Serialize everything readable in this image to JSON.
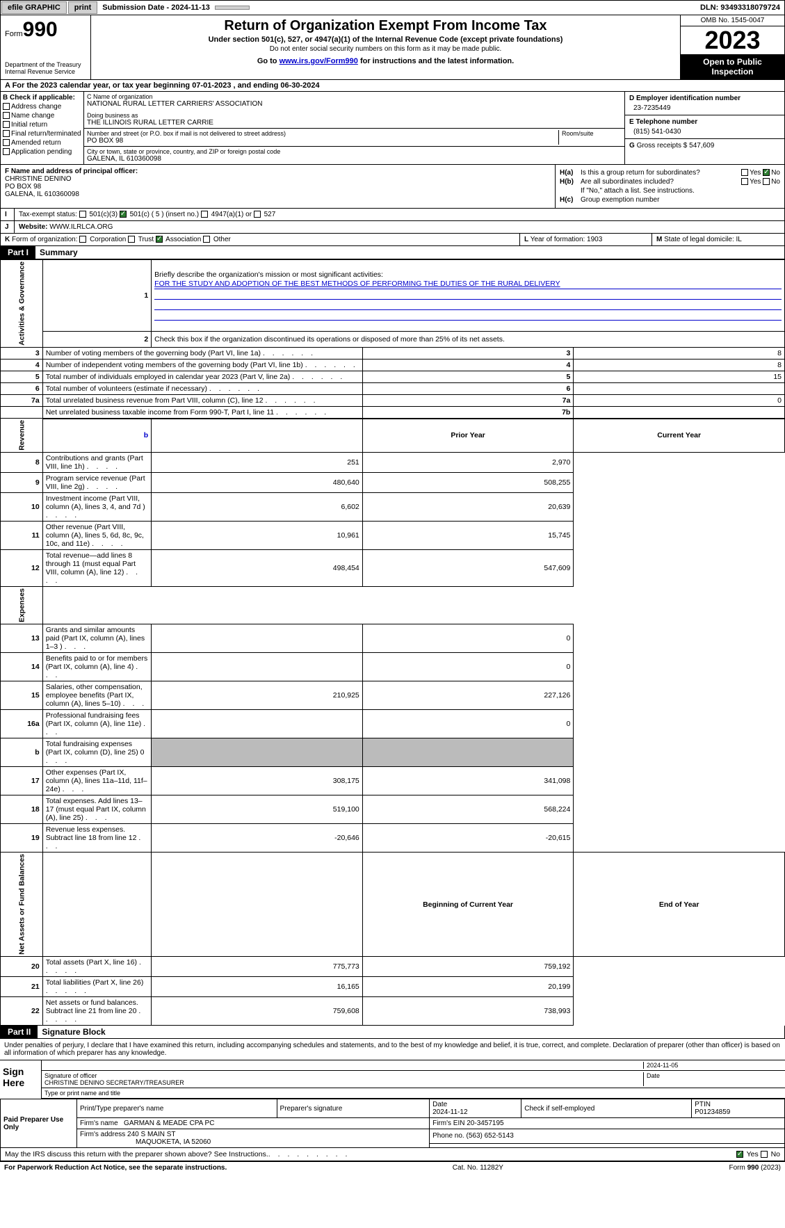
{
  "topbar": {
    "efile": "efile GRAPHIC",
    "print": "print",
    "submission": "Submission Date - 2024-11-13",
    "dln": "DLN: 93493318079724"
  },
  "header": {
    "form": "Form",
    "form_no": "990",
    "dept": "Department of the Treasury\nInternal Revenue Service",
    "title": "Return of Organization Exempt From Income Tax",
    "subtitle": "Under section 501(c), 527, or 4947(a)(1) of the Internal Revenue Code (except private foundations)",
    "ssn_note": "Do not enter social security numbers on this form as it may be made public.",
    "goto_prefix": "Go to ",
    "goto_link": "www.irs.gov/Form990",
    "goto_suffix": " for instructions and the latest information.",
    "omb": "OMB No. 1545-0047",
    "year": "2023",
    "open_public": "Open to Public Inspection"
  },
  "taxyear": "A For the 2023 calendar year, or tax year beginning 07-01-2023   , and ending 06-30-2024",
  "b": {
    "heading": "B Check if applicable:",
    "items": [
      "Address change",
      "Name change",
      "Initial return",
      "Final return/terminated",
      "Amended return",
      "Application pending"
    ]
  },
  "c": {
    "name_label": "C Name of organization",
    "name": "NATIONAL RURAL LETTER CARRIERS' ASSOCIATION",
    "dba_label": "Doing business as",
    "dba": "THE ILLINOIS RURAL LETTER CARRIE",
    "addr_label": "Number and street (or P.O. box if mail is not delivered to street address)",
    "addr": "PO BOX 98",
    "room_label": "Room/suite",
    "city_label": "City or town, state or province, country, and ZIP or foreign postal code",
    "city": "GALENA, IL  610360098"
  },
  "d": {
    "label": "D Employer identification number",
    "val": "23-7235449"
  },
  "e": {
    "label": "E Telephone number",
    "val": "(815) 541-0430"
  },
  "g": {
    "label": "G",
    "text": "Gross receipts $ 547,609"
  },
  "f": {
    "label": "F  Name and address of principal officer:",
    "name": "CHRISTINE DENINO",
    "addr": "PO BOX 98",
    "city": "GALENA, IL  610360098"
  },
  "h": {
    "a_label": "H(a)",
    "a_text": "Is this a group return for subordinates?",
    "b_label": "H(b)",
    "b_text": "Are all subordinates included?",
    "b_note": "If \"No,\" attach a list. See instructions.",
    "c_label": "H(c)",
    "c_text": "Group exemption number",
    "yes": "Yes",
    "no": "No"
  },
  "i": {
    "label": "I",
    "text": "Tax-exempt status:",
    "opts": [
      "501(c)(3)",
      "501(c) ( 5 ) (insert no.)",
      "4947(a)(1) or",
      "527"
    ]
  },
  "j": {
    "label": "J",
    "text": "Website:",
    "val": "WWW.ILRLCA.ORG"
  },
  "k": {
    "label": "K",
    "text": "Form of organization:",
    "opts": [
      "Corporation",
      "Trust",
      "Association",
      "Other"
    ]
  },
  "l": {
    "label": "L",
    "text": "Year of formation: 1903"
  },
  "m": {
    "label": "M",
    "text": "State of legal domicile: IL"
  },
  "part1": {
    "label": "Part I",
    "title": "Summary"
  },
  "mission": {
    "q": "Briefly describe the organization's mission or most significant activities:",
    "text": "FOR THE STUDY AND ADOPTION OF THE BEST METHODS OF PERFORMING THE DUTIES OF THE RURAL DELIVERY"
  },
  "line2": "Check this box      if the organization discontinued its operations or disposed of more than 25% of its net assets.",
  "sides": {
    "gov": "Activities & Governance",
    "rev": "Revenue",
    "exp": "Expenses",
    "net": "Net Assets or Fund Balances"
  },
  "gov_lines": [
    {
      "n": "3",
      "t": "Number of voting members of the governing body (Part VI, line 1a)",
      "box": "3",
      "v": "8"
    },
    {
      "n": "4",
      "t": "Number of independent voting members of the governing body (Part VI, line 1b)",
      "box": "4",
      "v": "8"
    },
    {
      "n": "5",
      "t": "Total number of individuals employed in calendar year 2023 (Part V, line 2a)",
      "box": "5",
      "v": "15"
    },
    {
      "n": "6",
      "t": "Total number of volunteers (estimate if necessary)",
      "box": "6",
      "v": ""
    },
    {
      "n": "7a",
      "t": "Total unrelated business revenue from Part VIII, column (C), line 12",
      "box": "7a",
      "v": "0"
    },
    {
      "n": "",
      "t": "Net unrelated business taxable income from Form 990-T, Part I, line 11",
      "box": "7b",
      "v": ""
    }
  ],
  "col_headers": {
    "b": "b",
    "prior": "Prior Year",
    "current": "Current Year"
  },
  "rev_lines": [
    {
      "n": "8",
      "t": "Contributions and grants (Part VIII, line 1h)",
      "p": "251",
      "c": "2,970"
    },
    {
      "n": "9",
      "t": "Program service revenue (Part VIII, line 2g)",
      "p": "480,640",
      "c": "508,255"
    },
    {
      "n": "10",
      "t": "Investment income (Part VIII, column (A), lines 3, 4, and 7d )",
      "p": "6,602",
      "c": "20,639"
    },
    {
      "n": "11",
      "t": "Other revenue (Part VIII, column (A), lines 5, 6d, 8c, 9c, 10c, and 11e)",
      "p": "10,961",
      "c": "15,745"
    },
    {
      "n": "12",
      "t": "Total revenue—add lines 8 through 11 (must equal Part VIII, column (A), line 12)",
      "p": "498,454",
      "c": "547,609"
    }
  ],
  "exp_lines": [
    {
      "n": "13",
      "t": "Grants and similar amounts paid (Part IX, column (A), lines 1–3 )",
      "p": "",
      "c": "0"
    },
    {
      "n": "14",
      "t": "Benefits paid to or for members (Part IX, column (A), line 4)",
      "p": "",
      "c": "0"
    },
    {
      "n": "15",
      "t": "Salaries, other compensation, employee benefits (Part IX, column (A), lines 5–10)",
      "p": "210,925",
      "c": "227,126"
    },
    {
      "n": "16a",
      "t": "Professional fundraising fees (Part IX, column (A), line 11e)",
      "p": "",
      "c": "0"
    },
    {
      "n": "b",
      "t": "Total fundraising expenses (Part IX, column (D), line 25) 0",
      "p": "grey",
      "c": "grey"
    },
    {
      "n": "17",
      "t": "Other expenses (Part IX, column (A), lines 11a–11d, 11f–24e)",
      "p": "308,175",
      "c": "341,098"
    },
    {
      "n": "18",
      "t": "Total expenses. Add lines 13–17 (must equal Part IX, column (A), line 25)",
      "p": "519,100",
      "c": "568,224"
    },
    {
      "n": "19",
      "t": "Revenue less expenses. Subtract line 18 from line 12",
      "p": "-20,646",
      "c": "-20,615"
    }
  ],
  "net_headers": {
    "begin": "Beginning of Current Year",
    "end": "End of Year"
  },
  "net_lines": [
    {
      "n": "20",
      "t": "Total assets (Part X, line 16)",
      "p": "775,773",
      "c": "759,192"
    },
    {
      "n": "21",
      "t": "Total liabilities (Part X, line 26)",
      "p": "16,165",
      "c": "20,199"
    },
    {
      "n": "22",
      "t": "Net assets or fund balances. Subtract line 21 from line 20",
      "p": "759,608",
      "c": "738,993"
    }
  ],
  "part2": {
    "label": "Part II",
    "title": "Signature Block"
  },
  "penalty": "Under penalties of perjury, I declare that I have examined this return, including accompanying schedules and statements, and to the best of my knowledge and belief, it is true, correct, and complete. Declaration of preparer (other than officer) is based on all information of which preparer has any knowledge.",
  "sign": {
    "here": "Sign Here",
    "date": "2024-11-05",
    "sig_label": "Signature of officer",
    "officer": "CHRISTINE DENINO  SECRETARY/TREASURER",
    "type_label": "Type or print name and title",
    "date_label": "Date"
  },
  "preparer": {
    "label": "Paid Preparer Use Only",
    "name_label": "Print/Type preparer's name",
    "sig_label": "Preparer's signature",
    "date_label": "Date",
    "date": "2024-11-12",
    "check_label": "Check        if self-employed",
    "ptin_label": "PTIN",
    "ptin": "P01234859",
    "firm_name_label": "Firm's name",
    "firm_name": "GARMAN & MEADE CPA PC",
    "firm_ein_label": "Firm's EIN",
    "firm_ein": "20-3457195",
    "firm_addr_label": "Firm's address",
    "firm_addr1": "240 S MAIN ST",
    "firm_addr2": "MAQUOKETA, IA  52060",
    "phone_label": "Phone no.",
    "phone": "(563) 652-5143"
  },
  "discuss": "May the IRS discuss this return with the preparer shown above? See Instructions.",
  "footer": {
    "left": "For Paperwork Reduction Act Notice, see the separate instructions.",
    "mid": "Cat. No. 11282Y",
    "right_a": "Form ",
    "right_b": "990",
    "right_c": " (2023)"
  }
}
